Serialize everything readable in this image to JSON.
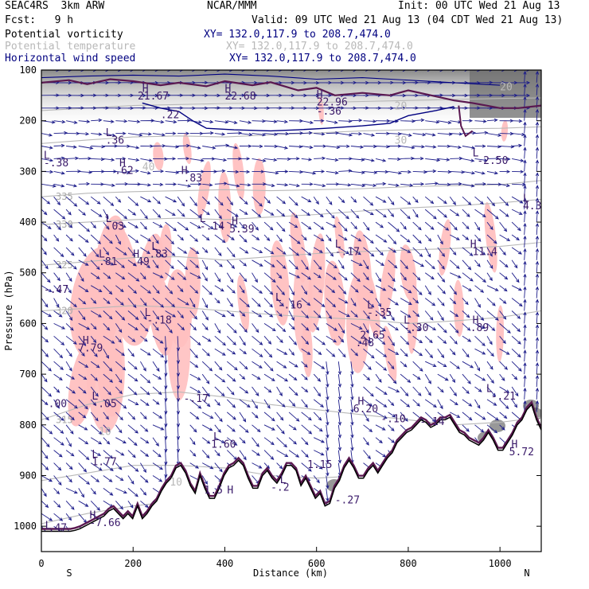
{
  "header": {
    "model": "SEAC4RS  3km ARW",
    "center": "NCAR/MMM",
    "init": "Init: 00 UTC Wed 21 Aug 13",
    "fcst": "Fcst:   9 h",
    "valid": "Valid: 09 UTC Wed 21 Aug 13 (04 CDT Wed 21 Aug 13)"
  },
  "legend": [
    {
      "field": "Potential vorticity",
      "xy": "XY= 132.0,117.9 to 208.7,474.0",
      "color": "#000080"
    },
    {
      "field": "Potential temperature",
      "xy": "XY= 132.0,117.9 to 208.7,474.0",
      "color": "#b8b8b8"
    },
    {
      "field": "Horizontal wind speed",
      "xy": "XY= 132.0,117.9 to 208.7,474.0",
      "color": "#000080"
    }
  ],
  "chart_data": {
    "type": "cross-section",
    "xlabel": "Distance (km)",
    "ylabel": "Pressure (hPa)",
    "xlim": [
      0,
      1090
    ],
    "ylim": [
      1050,
      100
    ],
    "x_ticks": [
      0,
      200,
      400,
      600,
      800,
      1000
    ],
    "y_ticks": [
      100,
      200,
      300,
      400,
      500,
      600,
      700,
      800,
      900,
      1000
    ],
    "endpoints": {
      "left": "S",
      "right": "N"
    },
    "theta_contours": [
      {
        "label": "335",
        "x": [
          0,
          100,
          200,
          300,
          400,
          500,
          600,
          700,
          800,
          900,
          1000,
          1090
        ],
        "p": [
          350,
          343,
          340,
          338,
          336,
          338,
          336,
          334,
          330,
          328,
          326,
          318
        ]
      },
      {
        "label": "330",
        "x": [
          0,
          100,
          200,
          300,
          400,
          500,
          600,
          700,
          800,
          900,
          1000,
          1090
        ],
        "p": [
          405,
          400,
          395,
          392,
          395,
          390,
          385,
          378,
          372,
          368,
          362,
          355
        ]
      },
      {
        "label": "325",
        "x": [
          0,
          100,
          200,
          300,
          400,
          500,
          600,
          700,
          800,
          900,
          1000,
          1090
        ],
        "p": [
          485,
          478,
          470,
          468,
          475,
          468,
          462,
          458,
          455,
          452,
          448,
          440
        ]
      },
      {
        "label": "320",
        "x": [
          0,
          100,
          200,
          300,
          400,
          500,
          600,
          700,
          800,
          900,
          1000,
          1090
        ],
        "p": [
          575,
          570,
          565,
          568,
          575,
          582,
          588,
          592,
          600,
          595,
          588,
          575
        ]
      },
      {
        "label": "",
        "x": [
          0,
          100,
          200,
          300,
          400,
          500,
          600,
          700,
          800,
          900,
          1000,
          1090
        ],
        "p": [
          245,
          238,
          232,
          230,
          232,
          228,
          224,
          220,
          218,
          216,
          215,
          212
        ]
      },
      {
        "label": "",
        "x": [
          0,
          100,
          200,
          300,
          400,
          500,
          600,
          700,
          800,
          900,
          1000,
          1090
        ],
        "p": [
          180,
          175,
          170,
          168,
          166,
          165,
          164,
          162,
          160,
          158,
          156,
          155
        ]
      },
      {
        "label": "315",
        "x": [
          0,
          100,
          200,
          300,
          400,
          500,
          600,
          700,
          800,
          900,
          1000,
          1090
        ],
        "p": [
          790,
          760,
          740,
          735,
          745,
          760,
          770,
          780,
          790,
          800,
          795,
          785
        ]
      },
      {
        "label": "",
        "x": [
          0,
          100,
          200,
          300,
          400,
          500,
          600,
          700,
          800
        ],
        "p": [
          910,
          895,
          880,
          880,
          885,
          900,
          905,
          900,
          890
        ]
      },
      {
        "label": "",
        "x": [
          0,
          100,
          200,
          300
        ],
        "p": [
          995,
          975,
          960,
          950
        ]
      }
    ],
    "pv_labels": [
      {
        "text": "-.38",
        "x": 5,
        "p": 290
      },
      {
        "text": ".36",
        "x": 140,
        "p": 245
      },
      {
        "text": ".62",
        "x": 160,
        "p": 305
      },
      {
        "text": ".83",
        "x": 310,
        "p": 320
      },
      {
        "text": ".03",
        "x": 140,
        "p": 415
      },
      {
        "text": ".81",
        "x": 125,
        "p": 485
      },
      {
        "text": ".49",
        "x": 195,
        "p": 485
      },
      {
        "text": ".83",
        "x": 235,
        "p": 470
      },
      {
        "text": "-.14",
        "x": 345,
        "p": 415
      },
      {
        "text": "5.39",
        "x": 410,
        "p": 420
      },
      {
        "text": "-.17",
        "x": 640,
        "p": 465
      },
      {
        "text": "11.4",
        "x": 940,
        "p": 465
      },
      {
        "text": "-.47",
        "x": 5,
        "p": 540
      },
      {
        "text": "-.16",
        "x": 515,
        "p": 570
      },
      {
        "text": "-.35",
        "x": 710,
        "p": 585
      },
      {
        "text": "-.18",
        "x": 230,
        "p": 600
      },
      {
        "text": ".89",
        "x": 935,
        "p": 615
      },
      {
        "text": "-.30",
        "x": 790,
        "p": 615
      },
      {
        "text": "2.65",
        "x": 695,
        "p": 630
      },
      {
        "text": ".48",
        "x": 685,
        "p": 645
      },
      {
        "text": "7.79",
        "x": 80,
        "p": 655
      },
      {
        "text": "-.21",
        "x": 980,
        "p": 750
      },
      {
        "text": ".00",
        "x": 15,
        "p": 765
      },
      {
        "text": "-.05",
        "x": 110,
        "p": 765
      },
      {
        "text": "-.17",
        "x": 310,
        "p": 755
      },
      {
        "text": "6.20",
        "x": 680,
        "p": 775
      },
      {
        "text": "-.10",
        "x": 740,
        "p": 795
      },
      {
        "text": "1.60",
        "x": 370,
        "p": 845
      },
      {
        "text": "1.77",
        "x": 110,
        "p": 880
      },
      {
        "text": "1.5",
        "x": 355,
        "p": 935
      },
      {
        "text": "1.15",
        "x": 580,
        "p": 885
      },
      {
        "text": "-.27",
        "x": 640,
        "p": 955
      },
      {
        "text": "-7.66",
        "x": 105,
        "p": 1000
      },
      {
        "text": ".47",
        "x": 15,
        "p": 1010
      },
      {
        "text": "-.2",
        "x": 500,
        "p": 930
      },
      {
        "text": "5.72",
        "x": 1020,
        "p": 860
      },
      {
        "text": "-.14",
        "x": 825,
        "p": 800
      },
      {
        "text": "21.67",
        "x": 210,
        "p": 158
      },
      {
        "text": "22.68",
        "x": 400,
        "p": 158
      },
      {
        "text": "22.96",
        "x": 600,
        "p": 170
      },
      {
        "text": "-.36",
        "x": 600,
        "p": 188
      },
      {
        "text": ".22",
        "x": 260,
        "p": 195
      },
      {
        "text": "-2.50",
        "x": 950,
        "p": 285
      },
      {
        "text": "4.3",
        "x": 1050,
        "p": 375
      }
    ],
    "pv_markers": [
      {
        "text": "L",
        "x": 5,
        "p": 275
      },
      {
        "text": "L",
        "x": 140,
        "p": 230
      },
      {
        "text": "H",
        "x": 170,
        "p": 290
      },
      {
        "text": "H",
        "x": 305,
        "p": 305
      },
      {
        "text": "L",
        "x": 140,
        "p": 400
      },
      {
        "text": "L",
        "x": 125,
        "p": 470
      },
      {
        "text": "H",
        "x": 200,
        "p": 470
      },
      {
        "text": "L",
        "x": 240,
        "p": 455
      },
      {
        "text": "L",
        "x": 345,
        "p": 400
      },
      {
        "text": "H",
        "x": 415,
        "p": 405
      },
      {
        "text": "L",
        "x": 640,
        "p": 450
      },
      {
        "text": "H",
        "x": 935,
        "p": 450
      },
      {
        "text": "L",
        "x": 510,
        "p": 555
      },
      {
        "text": "L",
        "x": 710,
        "p": 570
      },
      {
        "text": "L",
        "x": 225,
        "p": 585
      },
      {
        "text": "H",
        "x": 940,
        "p": 600
      },
      {
        "text": "L",
        "x": 790,
        "p": 600
      },
      {
        "text": "H",
        "x": 90,
        "p": 640
      },
      {
        "text": "L",
        "x": 970,
        "p": 735
      },
      {
        "text": "L",
        "x": 110,
        "p": 750
      },
      {
        "text": "H",
        "x": 690,
        "p": 760
      },
      {
        "text": "L",
        "x": 375,
        "p": 830
      },
      {
        "text": "L",
        "x": 110,
        "p": 865
      },
      {
        "text": "H",
        "x": 405,
        "p": 935
      },
      {
        "text": "L",
        "x": 520,
        "p": 915
      },
      {
        "text": "H",
        "x": 105,
        "p": 985
      },
      {
        "text": "H",
        "x": 1025,
        "p": 845
      },
      {
        "text": "L",
        "x": 8,
        "p": 1005
      },
      {
        "text": "H",
        "x": 220,
        "p": 143
      },
      {
        "text": "H",
        "x": 400,
        "p": 143
      },
      {
        "text": "H",
        "x": 600,
        "p": 155
      },
      {
        "text": "L",
        "x": 940,
        "p": 270
      },
      {
        "text": "L",
        "x": 1050,
        "p": 360
      }
    ],
    "wind_speed_labels": [
      {
        "text": "20",
        "x": 770,
        "p": 178
      },
      {
        "text": "20",
        "x": 1000,
        "p": 140
      },
      {
        "text": "30",
        "x": 770,
        "p": 245
      },
      {
        "text": "40",
        "x": 220,
        "p": 298
      },
      {
        "text": "10",
        "x": 125,
        "p": 820
      },
      {
        "text": "10",
        "x": 280,
        "p": 920
      }
    ],
    "terrain_p": [
      1010,
      1010,
      1010,
      1010,
      1010,
      1010,
      1010,
      1008,
      1005,
      1000,
      995,
      990,
      985,
      980,
      970,
      965,
      975,
      985,
      975,
      985,
      960,
      985,
      975,
      960,
      950,
      930,
      915,
      905,
      885,
      880,
      895,
      920,
      935,
      900,
      925,
      945,
      945,
      925,
      900,
      885,
      880,
      870,
      880,
      905,
      925,
      925,
      900,
      890,
      905,
      915,
      900,
      880,
      880,
      890,
      920,
      905,
      925,
      945,
      935,
      960,
      955,
      925,
      910,
      885,
      870,
      885,
      905,
      905,
      890,
      880,
      895,
      880,
      865,
      855,
      835,
      825,
      815,
      810,
      800,
      790,
      795,
      805,
      800,
      790,
      790,
      785,
      800,
      815,
      820,
      830,
      835,
      840,
      830,
      815,
      830,
      850,
      850,
      835,
      820,
      800,
      790,
      770,
      760,
      790,
      810
    ]
  }
}
